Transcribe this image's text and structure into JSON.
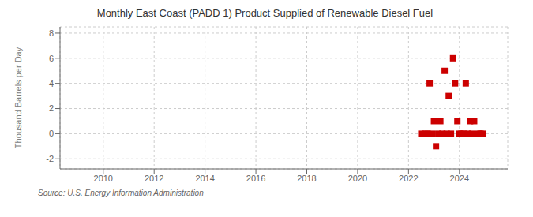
{
  "chart_data": {
    "type": "scatter",
    "title": "Monthly East Coast (PADD 1) Product Supplied of Renewable Diesel Fuel",
    "ylabel": "Thousand Barrels per Day",
    "annotations": [
      "Source: U.S. Energy Information Administration"
    ],
    "x": [
      2022.5,
      2022.67,
      2022.75,
      2022.83,
      2022.92,
      2023.0,
      2023.08,
      2023.17,
      2023.25,
      2023.33,
      2023.42,
      2023.5,
      2023.58,
      2023.67,
      2023.75,
      2023.83,
      2023.92,
      2024.0,
      2024.08,
      2024.17,
      2024.25,
      2024.33,
      2024.42,
      2024.5,
      2024.58,
      2024.75,
      2024.83,
      2024.92
    ],
    "values": [
      0.0,
      0.0,
      0.0,
      4.0,
      0.0,
      1.0,
      -1.0,
      0.0,
      1.0,
      0.0,
      5.0,
      0.0,
      3.0,
      0.0,
      6.0,
      4.0,
      1.0,
      0.0,
      0.0,
      0.0,
      4.0,
      0.0,
      1.0,
      0.0,
      1.0,
      0.0,
      0.0,
      0.0
    ],
    "color": "#cc0000",
    "marker": "square",
    "grid": true,
    "xlim": [
      2008.3,
      2025.9
    ],
    "ylim": [
      -2.8,
      8.5
    ],
    "xticks": [
      2010,
      2012,
      2014,
      2016,
      2018,
      2020,
      2022,
      2024
    ],
    "yticks": [
      -2,
      0,
      2,
      4,
      6,
      8
    ]
  }
}
